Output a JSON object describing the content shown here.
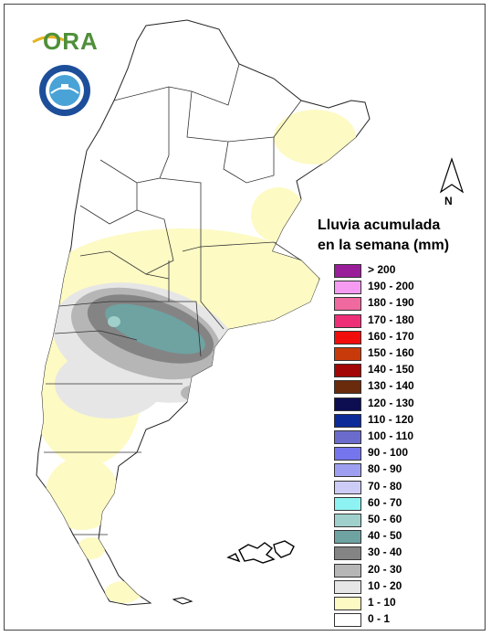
{
  "logos": {
    "ora_text": "ORA",
    "smn_ring_text": "SERVICIO METEOROLOGICO NACIONAL · ARGENTINA"
  },
  "compass": {
    "label": "N"
  },
  "legend": {
    "title_line1": "Lluvia acumulada",
    "title_line2": "en la semana (mm)",
    "items": [
      {
        "label": "> 200",
        "color": "#9a1e9a"
      },
      {
        "label": "190 - 200",
        "color": "#f59cf2"
      },
      {
        "label": "180 - 190",
        "color": "#f0699f"
      },
      {
        "label": "170 - 180",
        "color": "#ee2f78"
      },
      {
        "label": "160 - 170",
        "color": "#f20d0d"
      },
      {
        "label": "150 - 160",
        "color": "#c93a0a"
      },
      {
        "label": "140 - 150",
        "color": "#a30606"
      },
      {
        "label": "130 - 140",
        "color": "#6a2a0c"
      },
      {
        "label": "120 - 130",
        "color": "#0d0d52"
      },
      {
        "label": "110 - 120",
        "color": "#0d2a99"
      },
      {
        "label": "100 - 110",
        "color": "#6b6bcc"
      },
      {
        "label": "90 - 100",
        "color": "#7575ee"
      },
      {
        "label": "80 - 90",
        "color": "#9f9ff2"
      },
      {
        "label": "70 - 80",
        "color": "#ccccf7"
      },
      {
        "label": "60 - 70",
        "color": "#8ff2f2"
      },
      {
        "label": "50 - 60",
        "color": "#9fd0cb"
      },
      {
        "label": "40 - 50",
        "color": "#6ea3a2"
      },
      {
        "label": "30 - 40",
        "color": "#848484"
      },
      {
        "label": "20 - 30",
        "color": "#b6b6b6"
      },
      {
        "label": "10 - 20",
        "color": "#e6e6e6"
      },
      {
        "label": "1 - 10",
        "color": "#fdfac4"
      },
      {
        "label": "0 - 1",
        "color": "#ffffff"
      }
    ]
  }
}
